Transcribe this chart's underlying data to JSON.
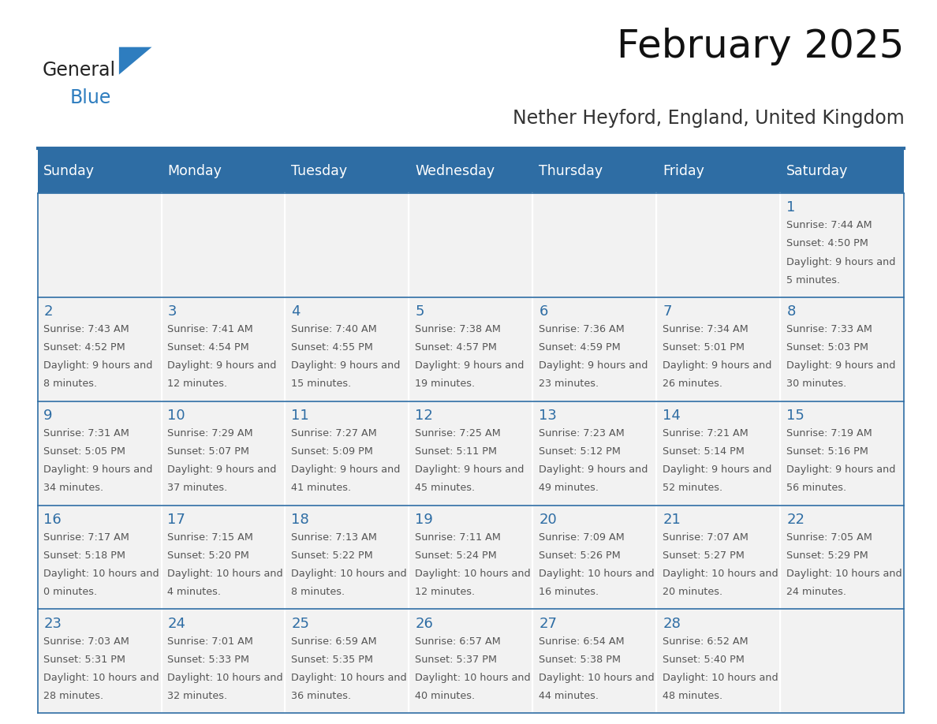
{
  "title": "February 2025",
  "subtitle": "Nether Heyford, England, United Kingdom",
  "header_bg_color": "#2E6DA4",
  "header_text_color": "#FFFFFF",
  "cell_bg_color": "#F2F2F2",
  "border_color": "#2E6DA4",
  "text_color": "#555555",
  "day_number_color": "#2E6DA4",
  "days_of_week": [
    "Sunday",
    "Monday",
    "Tuesday",
    "Wednesday",
    "Thursday",
    "Friday",
    "Saturday"
  ],
  "logo_general_color": "#222222",
  "logo_blue_color": "#2E7DBF",
  "calendar_data": [
    [
      null,
      null,
      null,
      null,
      null,
      null,
      1
    ],
    [
      2,
      3,
      4,
      5,
      6,
      7,
      8
    ],
    [
      9,
      10,
      11,
      12,
      13,
      14,
      15
    ],
    [
      16,
      17,
      18,
      19,
      20,
      21,
      22
    ],
    [
      23,
      24,
      25,
      26,
      27,
      28,
      null
    ]
  ],
  "sunrise_data": {
    "1": "7:44 AM",
    "2": "7:43 AM",
    "3": "7:41 AM",
    "4": "7:40 AM",
    "5": "7:38 AM",
    "6": "7:36 AM",
    "7": "7:34 AM",
    "8": "7:33 AM",
    "9": "7:31 AM",
    "10": "7:29 AM",
    "11": "7:27 AM",
    "12": "7:25 AM",
    "13": "7:23 AM",
    "14": "7:21 AM",
    "15": "7:19 AM",
    "16": "7:17 AM",
    "17": "7:15 AM",
    "18": "7:13 AM",
    "19": "7:11 AM",
    "20": "7:09 AM",
    "21": "7:07 AM",
    "22": "7:05 AM",
    "23": "7:03 AM",
    "24": "7:01 AM",
    "25": "6:59 AM",
    "26": "6:57 AM",
    "27": "6:54 AM",
    "28": "6:52 AM"
  },
  "sunset_data": {
    "1": "4:50 PM",
    "2": "4:52 PM",
    "3": "4:54 PM",
    "4": "4:55 PM",
    "5": "4:57 PM",
    "6": "4:59 PM",
    "7": "5:01 PM",
    "8": "5:03 PM",
    "9": "5:05 PM",
    "10": "5:07 PM",
    "11": "5:09 PM",
    "12": "5:11 PM",
    "13": "5:12 PM",
    "14": "5:14 PM",
    "15": "5:16 PM",
    "16": "5:18 PM",
    "17": "5:20 PM",
    "18": "5:22 PM",
    "19": "5:24 PM",
    "20": "5:26 PM",
    "21": "5:27 PM",
    "22": "5:29 PM",
    "23": "5:31 PM",
    "24": "5:33 PM",
    "25": "5:35 PM",
    "26": "5:37 PM",
    "27": "5:38 PM",
    "28": "5:40 PM"
  },
  "daylight_data": {
    "1": "9 hours and 5 minutes",
    "2": "9 hours and 8 minutes",
    "3": "9 hours and 12 minutes",
    "4": "9 hours and 15 minutes",
    "5": "9 hours and 19 minutes",
    "6": "9 hours and 23 minutes",
    "7": "9 hours and 26 minutes",
    "8": "9 hours and 30 minutes",
    "9": "9 hours and 34 minutes",
    "10": "9 hours and 37 minutes",
    "11": "9 hours and 41 minutes",
    "12": "9 hours and 45 minutes",
    "13": "9 hours and 49 minutes",
    "14": "9 hours and 52 minutes",
    "15": "9 hours and 56 minutes",
    "16": "10 hours and 0 minutes",
    "17": "10 hours and 4 minutes",
    "18": "10 hours and 8 minutes",
    "19": "10 hours and 12 minutes",
    "20": "10 hours and 16 minutes",
    "21": "10 hours and 20 minutes",
    "22": "10 hours and 24 minutes",
    "23": "10 hours and 28 minutes",
    "24": "10 hours and 32 minutes",
    "25": "10 hours and 36 minutes",
    "26": "10 hours and 40 minutes",
    "27": "10 hours and 44 minutes",
    "28": "10 hours and 48 minutes"
  }
}
